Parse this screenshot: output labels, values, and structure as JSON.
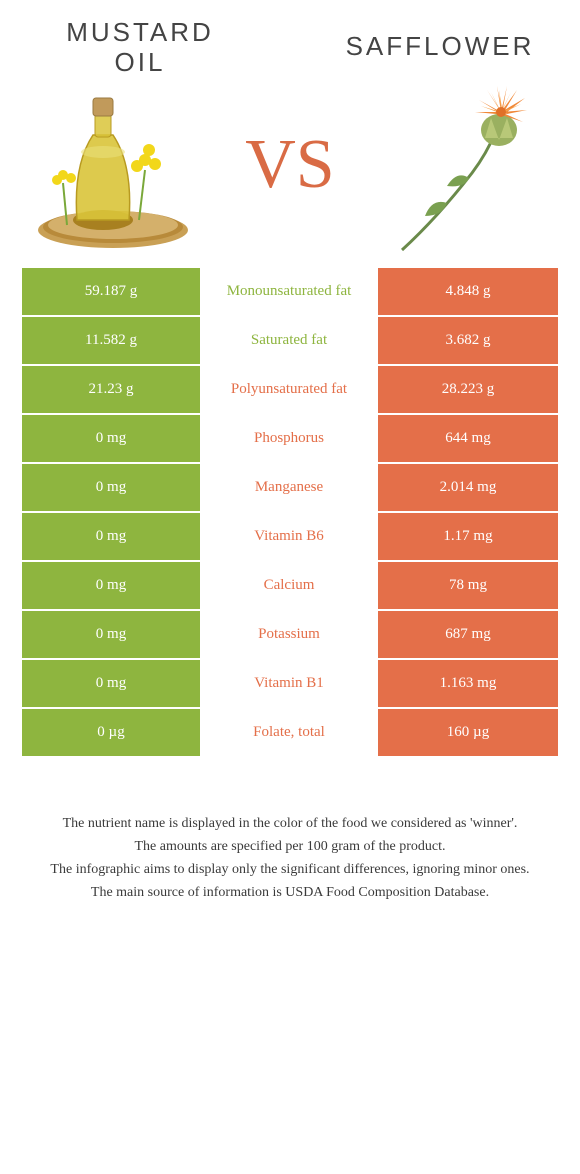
{
  "colors": {
    "green": "#8eb53f",
    "orange": "#e46f49",
    "vs": "#d96b45",
    "text_dark": "#444444",
    "white": "#ffffff"
  },
  "left_title": "Mustard\noil",
  "right_title": "Safflower",
  "vs_label": "VS",
  "rows": [
    {
      "nutrient": "Monounsaturated fat",
      "left": "59.187 g",
      "right": "4.848 g",
      "winner": "left"
    },
    {
      "nutrient": "Saturated fat",
      "left": "11.582 g",
      "right": "3.682 g",
      "winner": "left"
    },
    {
      "nutrient": "Polyunsaturated fat",
      "left": "21.23 g",
      "right": "28.223 g",
      "winner": "right"
    },
    {
      "nutrient": "Phosphorus",
      "left": "0 mg",
      "right": "644 mg",
      "winner": "right"
    },
    {
      "nutrient": "Manganese",
      "left": "0 mg",
      "right": "2.014 mg",
      "winner": "right"
    },
    {
      "nutrient": "Vitamin B6",
      "left": "0 mg",
      "right": "1.17 mg",
      "winner": "right"
    },
    {
      "nutrient": "Calcium",
      "left": "0 mg",
      "right": "78 mg",
      "winner": "right"
    },
    {
      "nutrient": "Potassium",
      "left": "0 mg",
      "right": "687 mg",
      "winner": "right"
    },
    {
      "nutrient": "Vitamin B1",
      "left": "0 mg",
      "right": "1.163 mg",
      "winner": "right"
    },
    {
      "nutrient": "Folate, total",
      "left": "0 µg",
      "right": "160 µg",
      "winner": "right"
    }
  ],
  "footnotes": [
    "The nutrient name is displayed in the color of the food we considered as 'winner'.",
    "The amounts are specified per 100 gram of the product.",
    "The infographic aims to display only the significant differences, ignoring minor ones.",
    "The main source of information is USDA Food Composition Database."
  ]
}
